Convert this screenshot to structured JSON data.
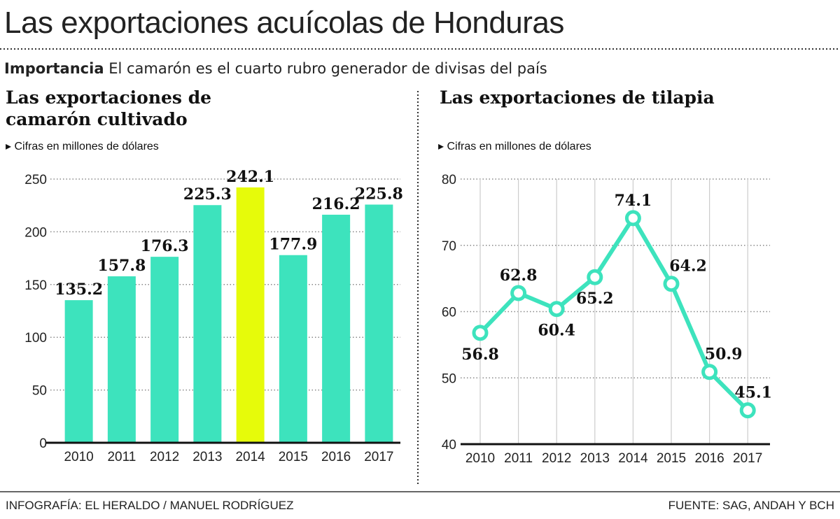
{
  "header": {
    "title": "Las exportaciones acuícolas de Honduras",
    "subtitle_bold": "Importancia",
    "subtitle_text": "El camarón es el cuarto rubro generador de divisas del país"
  },
  "footer": {
    "credit": "INFOGRAFÍA: EL HERALDO / MANUEL RODRÍGUEZ",
    "source": "FUENTE: SAG, ANDAH Y BCH"
  },
  "colors": {
    "bar": "#3de3bd",
    "highlight": "#e6fb0a",
    "line": "#3de3bd"
  },
  "chart_data": [
    {
      "type": "bar",
      "title": "Las exportaciones de camarón cultivado",
      "unit_note": "Cifras en millones de dólares",
      "categories": [
        "2010",
        "2011",
        "2012",
        "2013",
        "2014",
        "2015",
        "2016",
        "2017"
      ],
      "values": [
        135.2,
        157.8,
        176.3,
        225.3,
        242.1,
        177.9,
        216.2,
        225.8
      ],
      "data_labels": [
        "135.2",
        "157.8",
        "176.3",
        "225.3",
        "242.1",
        "177.9",
        "216.2",
        "225.8"
      ],
      "highlighted_category": "2014",
      "ylim": [
        0,
        250
      ],
      "yticks": [
        "0",
        "50",
        "100",
        "150",
        "200",
        "250"
      ],
      "grid": true
    },
    {
      "type": "line",
      "title": "Las exportaciones de tilapia",
      "unit_note": "Cifras en millones de dólares",
      "categories": [
        "2010",
        "2011",
        "2012",
        "2013",
        "2014",
        "2015",
        "2016",
        "2017"
      ],
      "values": [
        56.8,
        62.8,
        60.4,
        65.2,
        74.1,
        64.2,
        50.9,
        45.1
      ],
      "data_labels": [
        "56.8",
        "62.8",
        "60.4",
        "65.2",
        "74.1",
        "64.2",
        "50.9",
        "45.1"
      ],
      "ylim": [
        40,
        80
      ],
      "yticks": [
        "40",
        "50",
        "60",
        "70",
        "80"
      ],
      "grid": true
    }
  ]
}
